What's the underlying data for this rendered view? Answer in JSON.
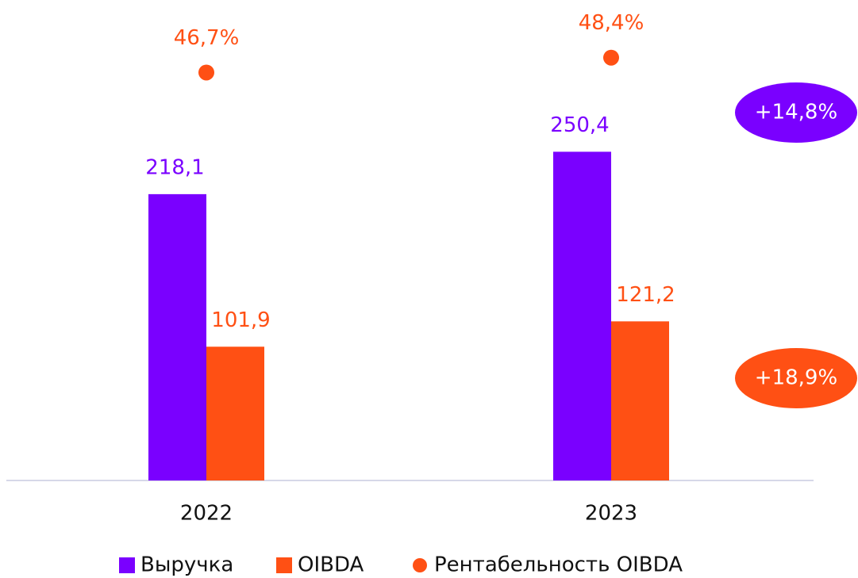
{
  "chart_data": {
    "type": "bar",
    "categories": [
      "2022",
      "2023"
    ],
    "series": [
      {
        "name": "Выручка",
        "color": "#7a00ff",
        "values": [
          218.1,
          250.4
        ],
        "value_labels": [
          "218,1",
          "250,4"
        ]
      },
      {
        "name": "OIBDA",
        "color": "#ff5014",
        "values": [
          101.9,
          121.2
        ],
        "value_labels": [
          "101,9",
          "121,2"
        ]
      },
      {
        "name": "Рентабельность OIBDA",
        "color": "#ff5014",
        "axis": "y2",
        "marker": "dot",
        "values": [
          46.7,
          48.4
        ],
        "value_labels": [
          "46,7%",
          "48,4%"
        ]
      }
    ],
    "ylim": [
      0,
      366
    ],
    "y2lim": [
      0,
      55
    ],
    "annotations": [
      {
        "text": "+14,8%",
        "color": "#7a00ff"
      },
      {
        "text": "+18,9%",
        "color": "#ff5014"
      }
    ],
    "legend": "bottom"
  }
}
